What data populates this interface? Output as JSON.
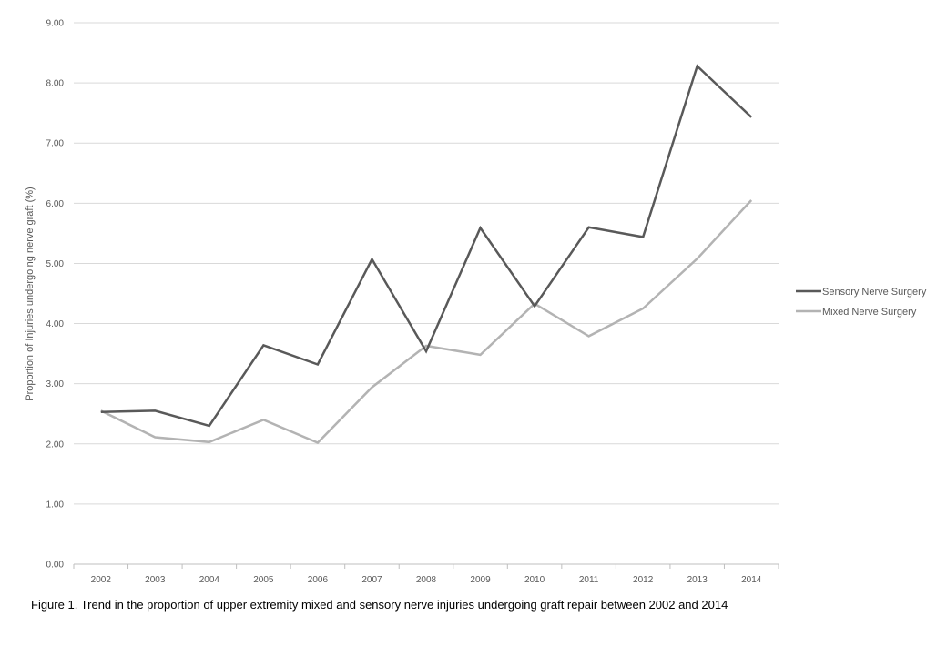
{
  "chart_data": {
    "type": "line",
    "caption": "Figure 1. Trend in the proportion of upper extremity mixed and sensory nerve injuries undergoing graft repair between 2002 and 2014",
    "ylabel": "Proportion of Injuries undergoing nerve graft (%)",
    "xlabel": "",
    "categories": [
      "2002",
      "2003",
      "2004",
      "2005",
      "2006",
      "2007",
      "2008",
      "2009",
      "2010",
      "2011",
      "2012",
      "2013",
      "2014"
    ],
    "yticks": [
      "0.00",
      "1.00",
      "2.00",
      "3.00",
      "4.00",
      "5.00",
      "6.00",
      "7.00",
      "8.00",
      "9.00"
    ],
    "ylim": [
      0,
      9
    ],
    "grid": true,
    "legend_position": "right",
    "series": [
      {
        "name": "Sensory Nerve Surgery",
        "color": "#595959",
        "values": [
          2.53,
          2.55,
          2.3,
          3.64,
          3.32,
          5.07,
          3.54,
          5.59,
          4.29,
          5.6,
          5.44,
          8.28,
          7.43
        ]
      },
      {
        "name": "Mixed Nerve Surgery",
        "color": "#b3b3b3",
        "values": [
          2.55,
          2.11,
          2.03,
          2.4,
          2.02,
          2.94,
          3.63,
          3.48,
          4.33,
          3.79,
          4.25,
          5.08,
          6.05
        ]
      }
    ]
  }
}
